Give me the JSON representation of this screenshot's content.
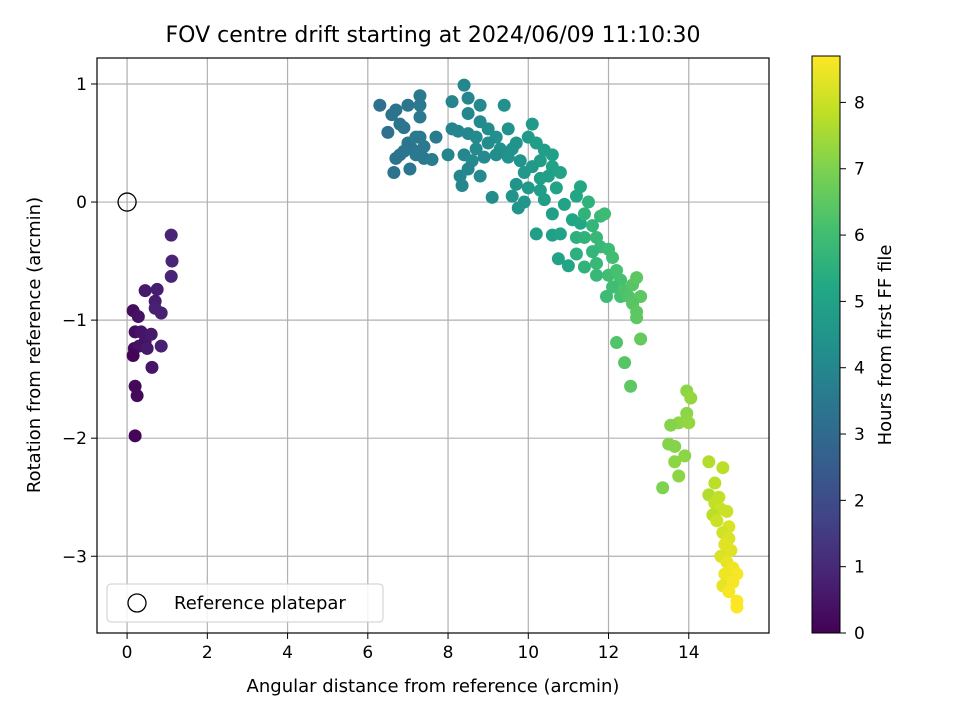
{
  "chart_data": {
    "type": "scatter",
    "title": "FOV centre drift starting at 2024/06/09 11:10:30",
    "xlabel": "Angular distance from reference (arcmin)",
    "ylabel": "Rotation from reference (arcmin)",
    "xlim": [
      -0.75,
      16.0
    ],
    "ylim": [
      -3.65,
      1.22
    ],
    "xticks": [
      0,
      2,
      4,
      6,
      8,
      10,
      12,
      14
    ],
    "yticks": [
      -3,
      -2,
      -1,
      0,
      1
    ],
    "grid": true,
    "colorbar": {
      "label": "Hours from first FF file",
      "colormap": "viridis",
      "range": [
        0,
        8.7
      ],
      "ticks": [
        0,
        1,
        2,
        3,
        4,
        5,
        6,
        7,
        8
      ]
    },
    "reference": {
      "x": 0,
      "y": 0,
      "label": "Reference platepar",
      "marker": "hollow circle"
    },
    "legend": {
      "placement": "lower-left",
      "entries": [
        "Reference platepar"
      ]
    },
    "series": [
      {
        "points": [
          [
            0.15,
            -0.92,
            0.3
          ],
          [
            0.28,
            -0.97,
            0.4
          ],
          [
            0.2,
            -1.1,
            0.3
          ],
          [
            0.35,
            -1.1,
            0.5
          ],
          [
            0.45,
            -1.18,
            0.5
          ],
          [
            0.6,
            -1.12,
            0.6
          ],
          [
            0.18,
            -1.24,
            0.2
          ],
          [
            0.3,
            -1.22,
            0.4
          ],
          [
            0.5,
            -1.24,
            0.6
          ],
          [
            0.15,
            -1.3,
            0.1
          ],
          [
            0.85,
            -1.22,
            0.8
          ],
          [
            0.62,
            -1.4,
            0.5
          ],
          [
            0.2,
            -1.56,
            0.2
          ],
          [
            0.25,
            -1.64,
            0.2
          ],
          [
            0.2,
            -1.98,
            0.1
          ],
          [
            0.45,
            -0.75,
            0.6
          ],
          [
            0.75,
            -0.74,
            0.7
          ],
          [
            0.7,
            -0.84,
            0.7
          ],
          [
            0.7,
            -0.9,
            0.8
          ],
          [
            0.85,
            -0.94,
            0.8
          ],
          [
            1.1,
            -0.28,
            0.9
          ],
          [
            1.12,
            -0.5,
            0.9
          ],
          [
            1.1,
            -0.63,
            0.9
          ]
        ]
      },
      {
        "points": [
          [
            6.3,
            0.82,
            3.2
          ],
          [
            6.6,
            0.74,
            3.3
          ],
          [
            6.7,
            0.78,
            3.3
          ],
          [
            7.0,
            0.82,
            3.4
          ],
          [
            7.3,
            0.9,
            3.5
          ],
          [
            7.3,
            0.82,
            3.5
          ],
          [
            6.5,
            0.59,
            3.2
          ],
          [
            6.8,
            0.66,
            3.3
          ],
          [
            6.9,
            0.63,
            3.4
          ],
          [
            7.3,
            0.72,
            3.5
          ],
          [
            7.0,
            0.5,
            3.4
          ],
          [
            7.3,
            0.55,
            3.5
          ],
          [
            7.7,
            0.55,
            3.6
          ],
          [
            7.1,
            0.45,
            3.4
          ],
          [
            7.2,
            0.4,
            3.5
          ],
          [
            6.8,
            0.4,
            3.3
          ],
          [
            6.9,
            0.43,
            3.4
          ],
          [
            7.4,
            0.37,
            3.5
          ],
          [
            6.7,
            0.37,
            3.3
          ],
          [
            7.05,
            0.28,
            3.4
          ],
          [
            6.65,
            0.25,
            3.3
          ],
          [
            7.4,
            0.47,
            3.5
          ],
          [
            7.6,
            0.36,
            3.6
          ],
          [
            7.2,
            0.55,
            3.5
          ]
        ]
      },
      {
        "points": [
          [
            8.1,
            0.85,
            3.9
          ],
          [
            8.4,
            0.99,
            4.0
          ],
          [
            8.5,
            0.88,
            4.0
          ],
          [
            8.8,
            0.82,
            4.1
          ],
          [
            9.4,
            0.82,
            4.3
          ],
          [
            8.5,
            0.75,
            4.0
          ],
          [
            8.8,
            0.68,
            4.1
          ],
          [
            8.1,
            0.62,
            3.9
          ],
          [
            8.25,
            0.6,
            4.0
          ],
          [
            8.5,
            0.58,
            4.0
          ],
          [
            8.7,
            0.55,
            4.1
          ],
          [
            9.0,
            0.62,
            4.2
          ],
          [
            9.2,
            0.55,
            4.3
          ],
          [
            9.5,
            0.62,
            4.4
          ],
          [
            9.7,
            0.5,
            4.5
          ],
          [
            9.3,
            0.45,
            4.3
          ],
          [
            9.0,
            0.5,
            4.2
          ],
          [
            8.7,
            0.45,
            4.1
          ],
          [
            8.4,
            0.4,
            4.0
          ],
          [
            8.0,
            0.4,
            3.9
          ],
          [
            8.6,
            0.35,
            4.1
          ],
          [
            8.9,
            0.38,
            4.1
          ],
          [
            9.2,
            0.4,
            4.2
          ],
          [
            9.5,
            0.38,
            4.4
          ],
          [
            9.8,
            0.35,
            4.5
          ],
          [
            8.3,
            0.22,
            4.0
          ],
          [
            8.5,
            0.28,
            4.0
          ],
          [
            8.8,
            0.22,
            4.1
          ],
          [
            8.35,
            0.14,
            4.0
          ],
          [
            9.1,
            0.04,
            4.2
          ],
          [
            9.6,
            0.45,
            4.4
          ]
        ]
      },
      {
        "points": [
          [
            10.1,
            0.66,
            4.7
          ],
          [
            10.0,
            0.55,
            4.7
          ],
          [
            10.2,
            0.5,
            4.8
          ],
          [
            10.4,
            0.44,
            4.8
          ],
          [
            10.3,
            0.35,
            4.8
          ],
          [
            10.6,
            0.4,
            4.9
          ],
          [
            10.6,
            0.3,
            5.0
          ],
          [
            10.1,
            0.3,
            4.7
          ],
          [
            9.9,
            0.25,
            4.6
          ],
          [
            10.3,
            0.2,
            4.8
          ],
          [
            10.5,
            0.22,
            4.9
          ],
          [
            10.8,
            0.25,
            5.0
          ],
          [
            9.7,
            0.15,
            4.5
          ],
          [
            10.0,
            0.12,
            4.7
          ],
          [
            10.3,
            0.1,
            4.8
          ],
          [
            10.7,
            0.12,
            5.0
          ],
          [
            9.6,
            0.05,
            4.5
          ],
          [
            9.9,
            0.0,
            4.6
          ],
          [
            10.4,
            0.02,
            4.8
          ],
          [
            9.75,
            -0.05,
            4.5
          ],
          [
            10.6,
            -0.1,
            4.9
          ],
          [
            10.9,
            -0.02,
            5.0
          ],
          [
            10.2,
            -0.27,
            4.8
          ],
          [
            10.6,
            -0.28,
            4.9
          ],
          [
            10.8,
            -0.27,
            5.0
          ],
          [
            10.75,
            -0.48,
            5.0
          ],
          [
            11.0,
            -0.54,
            5.1
          ],
          [
            11.1,
            -0.15,
            5.1
          ],
          [
            11.3,
            -0.18,
            5.2
          ],
          [
            11.3,
            0.13,
            5.2
          ],
          [
            11.2,
            0.05,
            5.2
          ]
        ]
      },
      {
        "points": [
          [
            11.2,
            -0.3,
            5.5
          ],
          [
            11.4,
            -0.1,
            5.6
          ],
          [
            11.5,
            0.0,
            5.6
          ],
          [
            11.6,
            -0.2,
            5.7
          ],
          [
            11.4,
            -0.3,
            5.6
          ],
          [
            11.7,
            -0.3,
            5.8
          ],
          [
            11.8,
            -0.12,
            5.8
          ],
          [
            11.9,
            -0.1,
            5.9
          ],
          [
            11.8,
            -0.38,
            5.8
          ],
          [
            11.6,
            -0.42,
            5.7
          ],
          [
            11.2,
            -0.44,
            5.5
          ],
          [
            11.4,
            -0.55,
            5.6
          ],
          [
            11.7,
            -0.52,
            5.8
          ],
          [
            12.0,
            -0.4,
            5.9
          ],
          [
            12.1,
            -0.47,
            6.0
          ],
          [
            11.7,
            -0.62,
            5.8
          ],
          [
            12.0,
            -0.62,
            6.0
          ],
          [
            12.2,
            -0.58,
            6.1
          ],
          [
            12.3,
            -0.66,
            6.1
          ],
          [
            12.1,
            -0.72,
            6.0
          ],
          [
            12.3,
            -0.8,
            6.1
          ],
          [
            12.4,
            -0.75,
            6.2
          ],
          [
            12.5,
            -0.8,
            6.3
          ],
          [
            11.95,
            -0.8,
            5.9
          ]
        ]
      },
      {
        "points": [
          [
            12.6,
            -0.7,
            6.4
          ],
          [
            12.7,
            -0.64,
            6.5
          ],
          [
            12.8,
            -0.8,
            6.5
          ],
          [
            12.6,
            -0.86,
            6.4
          ],
          [
            12.7,
            -0.93,
            6.5
          ],
          [
            12.7,
            -0.98,
            6.5
          ],
          [
            12.8,
            -1.16,
            6.6
          ],
          [
            12.2,
            -1.19,
            6.3
          ],
          [
            12.4,
            -1.36,
            6.4
          ],
          [
            12.55,
            -1.56,
            6.5
          ]
        ]
      },
      {
        "points": [
          [
            13.95,
            -1.6,
            7.2
          ],
          [
            14.05,
            -1.66,
            7.3
          ],
          [
            13.95,
            -1.79,
            7.2
          ],
          [
            13.75,
            -1.87,
            7.2
          ],
          [
            14.0,
            -1.87,
            7.3
          ],
          [
            13.55,
            -1.89,
            7.1
          ],
          [
            13.5,
            -2.05,
            7.1
          ],
          [
            13.65,
            -2.07,
            7.1
          ],
          [
            13.9,
            -2.15,
            7.2
          ],
          [
            13.65,
            -2.2,
            7.2
          ],
          [
            13.75,
            -2.32,
            7.2
          ],
          [
            13.35,
            -2.42,
            7.0
          ]
        ]
      },
      {
        "points": [
          [
            14.5,
            -2.2,
            7.7
          ],
          [
            14.85,
            -2.25,
            7.8
          ],
          [
            14.65,
            -2.38,
            7.8
          ],
          [
            14.5,
            -2.48,
            7.7
          ],
          [
            14.75,
            -2.5,
            7.9
          ],
          [
            14.65,
            -2.55,
            7.9
          ],
          [
            14.8,
            -2.6,
            8.0
          ],
          [
            14.95,
            -2.62,
            8.0
          ],
          [
            14.6,
            -2.65,
            7.8
          ],
          [
            14.7,
            -2.7,
            8.0
          ],
          [
            15.0,
            -2.75,
            8.2
          ],
          [
            14.85,
            -2.8,
            8.1
          ],
          [
            15.0,
            -2.85,
            8.2
          ],
          [
            14.9,
            -2.9,
            8.3
          ],
          [
            15.05,
            -2.95,
            8.3
          ],
          [
            14.8,
            -3.0,
            8.2
          ],
          [
            14.95,
            -3.05,
            8.4
          ],
          [
            15.1,
            -3.1,
            8.5
          ],
          [
            15.2,
            -3.15,
            8.6
          ],
          [
            14.9,
            -3.15,
            8.5
          ],
          [
            15.05,
            -3.2,
            8.5
          ],
          [
            14.85,
            -3.25,
            8.4
          ],
          [
            15.0,
            -3.3,
            8.6
          ],
          [
            15.2,
            -3.38,
            8.7
          ],
          [
            15.2,
            -3.43,
            8.7
          ],
          [
            15.1,
            -3.22,
            8.6
          ]
        ]
      }
    ]
  }
}
